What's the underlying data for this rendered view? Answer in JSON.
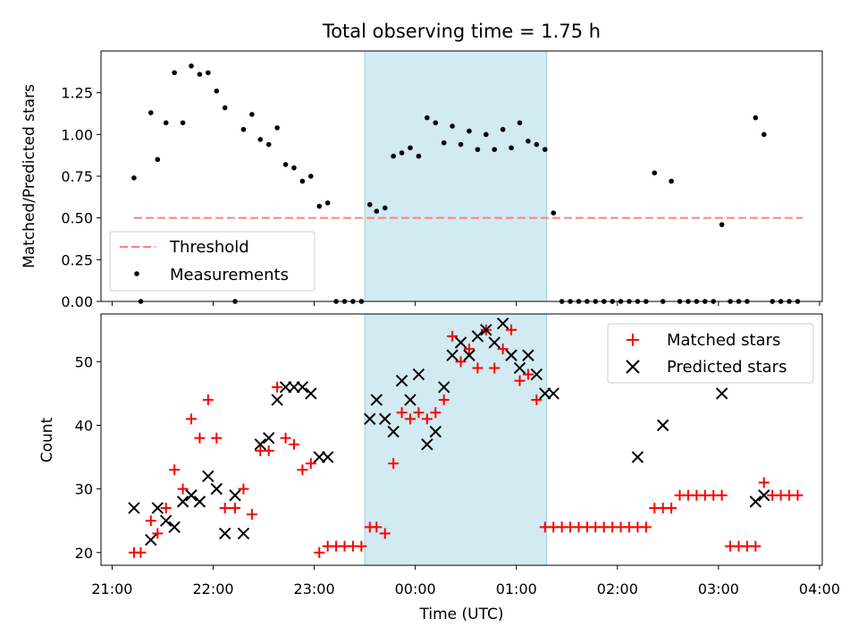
{
  "chart_data": [
    {
      "type": "scatter",
      "title": "Total observing time = 1.75 h",
      "ylabel": "Matched/Predicted stars",
      "xlabel": "",
      "xlim": [
        "21:00",
        "04:00"
      ],
      "ylim": [
        0,
        1.5
      ],
      "yticks": [
        "0.00",
        "0.25",
        "0.50",
        "0.75",
        "1.00",
        "1.25"
      ],
      "ytick_values": [
        0,
        0.25,
        0.5,
        0.75,
        1.0,
        1.25
      ],
      "highlight_span": [
        "23:30",
        "01:18"
      ],
      "legend_position": "lower-left",
      "threshold": {
        "name": "Threshold",
        "value": 0.5,
        "x_range": [
          "21:13",
          "03:50"
        ],
        "color": "#ff7f7f"
      },
      "series": [
        {
          "name": "Measurements",
          "color": "#000000",
          "x": [
            "21:13",
            "21:17",
            "21:23",
            "21:27",
            "21:32",
            "21:37",
            "21:42",
            "21:47",
            "21:52",
            "21:57",
            "22:02",
            "22:07",
            "22:13",
            "22:18",
            "22:23",
            "22:28",
            "22:33",
            "22:38",
            "22:43",
            "22:48",
            "22:53",
            "22:58",
            "23:03",
            "23:08",
            "23:13",
            "23:18",
            "23:23",
            "23:28",
            "23:33",
            "23:37",
            "23:42",
            "23:47",
            "23:52",
            "23:57",
            "24:02",
            "24:07",
            "24:12",
            "24:17",
            "24:22",
            "24:27",
            "24:32",
            "24:37",
            "24:42",
            "24:47",
            "24:52",
            "24:57",
            "25:02",
            "25:07",
            "25:12",
            "25:17",
            "25:22",
            "25:27",
            "25:32",
            "25:37",
            "25:42",
            "25:47",
            "25:52",
            "25:57",
            "26:02",
            "26:07",
            "26:12",
            "26:17",
            "26:22",
            "26:27",
            "26:32",
            "26:37",
            "26:42",
            "26:47",
            "26:52",
            "26:57",
            "27:02",
            "27:07",
            "27:12",
            "27:17",
            "27:22",
            "27:27",
            "27:32",
            "27:37",
            "27:42",
            "27:47"
          ],
          "y": [
            0.74,
            0.0,
            1.13,
            0.85,
            1.07,
            1.37,
            1.07,
            1.41,
            1.36,
            1.37,
            1.26,
            1.16,
            0.0,
            1.03,
            1.12,
            0.97,
            0.94,
            1.04,
            0.82,
            0.8,
            0.72,
            0.75,
            0.57,
            0.59,
            0.0,
            0.0,
            0.0,
            0.0,
            0.58,
            0.54,
            0.56,
            0.87,
            0.89,
            0.92,
            0.87,
            1.1,
            1.07,
            0.95,
            1.05,
            0.94,
            1.02,
            0.91,
            1.0,
            0.91,
            1.03,
            0.92,
            1.07,
            0.96,
            0.94,
            0.91,
            0.53,
            0.0,
            0.0,
            0.0,
            0.0,
            0.0,
            0.0,
            0.0,
            0.0,
            0.0,
            0.0,
            0.0,
            0.77,
            0.0,
            0.72,
            0.0,
            0.0,
            0.0,
            0.0,
            0.0,
            0.46,
            0.0,
            0.0,
            0.0,
            1.1,
            1.0,
            0.0,
            0.0,
            0.0,
            0.0
          ]
        }
      ]
    },
    {
      "type": "scatter",
      "title": "",
      "ylabel": "Count",
      "xlabel": "Time (UTC)",
      "xlim": [
        "21:00",
        "04:00"
      ],
      "xticks": [
        "21:00",
        "22:00",
        "23:00",
        "00:00",
        "01:00",
        "02:00",
        "03:00",
        "04:00"
      ],
      "ylim": [
        18,
        57.5
      ],
      "yticks": [
        "20",
        "30",
        "40",
        "50"
      ],
      "ytick_values": [
        20,
        30,
        40,
        50
      ],
      "highlight_span": [
        "23:30",
        "01:18"
      ],
      "legend_position": "upper-right",
      "series": [
        {
          "name": "Matched stars",
          "marker": "plus",
          "color": "#ff0000",
          "x": [
            "21:13",
            "21:17",
            "21:23",
            "21:27",
            "21:32",
            "21:37",
            "21:42",
            "21:47",
            "21:52",
            "21:57",
            "22:02",
            "22:07",
            "22:13",
            "22:18",
            "22:23",
            "22:28",
            "22:33",
            "22:38",
            "22:43",
            "22:48",
            "22:53",
            "22:58",
            "23:03",
            "23:08",
            "23:13",
            "23:18",
            "23:23",
            "23:28",
            "23:33",
            "23:37",
            "23:42",
            "23:47",
            "23:52",
            "23:57",
            "24:02",
            "24:07",
            "24:12",
            "24:17",
            "24:22",
            "24:27",
            "24:32",
            "24:37",
            "24:42",
            "24:47",
            "24:52",
            "24:57",
            "25:02",
            "25:07",
            "25:12",
            "25:17",
            "25:22",
            "25:27",
            "25:32",
            "25:37",
            "25:42",
            "25:47",
            "25:52",
            "25:57",
            "26:02",
            "26:07",
            "26:12",
            "26:17",
            "26:22",
            "26:27",
            "26:32",
            "26:37",
            "26:42",
            "26:47",
            "26:52",
            "26:57",
            "27:02",
            "27:07",
            "27:12",
            "27:17",
            "27:22",
            "27:27",
            "27:32",
            "27:37",
            "27:42",
            "27:47"
          ],
          "y": [
            20,
            20,
            25,
            23,
            27,
            33,
            30,
            41,
            38,
            44,
            38,
            27,
            27,
            30,
            26,
            36,
            36,
            46,
            38,
            37,
            33,
            34,
            20,
            21,
            21,
            21,
            21,
            21,
            24,
            24,
            23,
            34,
            42,
            41,
            42,
            41,
            42,
            44,
            54,
            50,
            52,
            49,
            55,
            49,
            52,
            55,
            47,
            48,
            44,
            24,
            24,
            24,
            24,
            24,
            24,
            24,
            24,
            24,
            24,
            24,
            24,
            24,
            27,
            27,
            27,
            29,
            29,
            29,
            29,
            29,
            29,
            21,
            21,
            21,
            21,
            31,
            29,
            29,
            29,
            29
          ]
        },
        {
          "name": "Predicted stars",
          "marker": "x",
          "color": "#000000",
          "x": [
            "21:13",
            "21:23",
            "21:27",
            "21:32",
            "21:37",
            "21:42",
            "21:47",
            "21:52",
            "21:57",
            "22:02",
            "22:07",
            "22:13",
            "22:18",
            "22:28",
            "22:33",
            "22:38",
            "22:43",
            "22:48",
            "22:53",
            "22:58",
            "23:03",
            "23:08",
            "23:33",
            "23:37",
            "23:42",
            "23:47",
            "23:52",
            "23:57",
            "24:02",
            "24:07",
            "24:12",
            "24:17",
            "24:22",
            "24:27",
            "24:32",
            "24:37",
            "24:42",
            "24:47",
            "24:52",
            "24:57",
            "25:02",
            "25:07",
            "25:12",
            "25:17",
            "25:22",
            "26:12",
            "26:27",
            "27:02",
            "27:22",
            "27:27"
          ],
          "y": [
            27,
            22,
            27,
            25,
            24,
            28,
            29,
            28,
            32,
            30,
            23,
            29,
            23,
            37,
            38,
            44,
            46,
            46,
            46,
            45,
            35,
            35,
            41,
            44,
            41,
            39,
            47,
            44,
            48,
            37,
            39,
            46,
            51,
            53,
            51,
            54,
            55,
            53,
            56,
            51,
            49,
            51,
            48,
            45,
            45,
            35,
            40,
            45,
            28,
            29
          ]
        }
      ]
    }
  ]
}
